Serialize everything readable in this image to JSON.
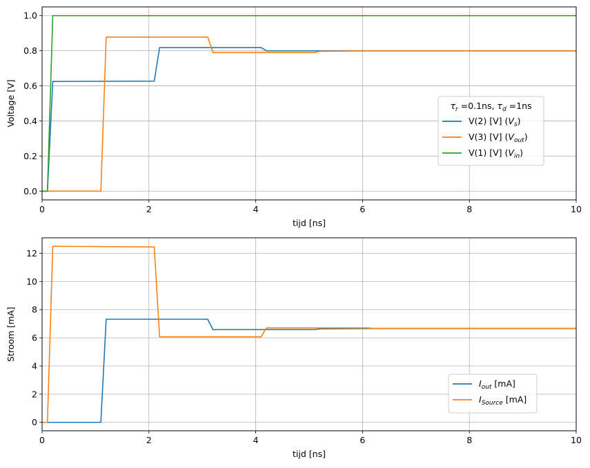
{
  "chart_data": [
    {
      "type": "line",
      "xlabel": "tijd [ns]",
      "ylabel": "Voltage [V]",
      "xlim": [
        0,
        10
      ],
      "ylim": [
        -0.05,
        1.05
      ],
      "xticks": [
        0,
        2,
        4,
        6,
        8,
        10
      ],
      "yticks": [
        0.0,
        0.2,
        0.4,
        0.6,
        0.8,
        1.0
      ],
      "xtick_labels": [
        "0",
        "2",
        "4",
        "6",
        "8",
        "10"
      ],
      "ytick_labels": [
        "0.0",
        "0.2",
        "0.4",
        "0.6",
        "0.8",
        "1.0"
      ],
      "grid": true,
      "legend": {
        "placement": "center-right",
        "title_parts": [
          {
            "text": "τ",
            "style": "italic"
          },
          {
            "text": "r",
            "style": "sub"
          },
          {
            "text": " =0.1ns, ",
            "style": "normal"
          },
          {
            "text": "τ",
            "style": "italic"
          },
          {
            "text": "d",
            "style": "sub"
          },
          {
            "text": " =1ns",
            "style": "normal"
          }
        ]
      },
      "series": [
        {
          "name_parts": [
            {
              "text": "V(2) [V]  (",
              "style": "normal"
            },
            {
              "text": "V",
              "style": "italic"
            },
            {
              "text": "s",
              "style": "sub"
            },
            {
              "text": ")",
              "style": "normal"
            }
          ],
          "color": "#1f77b4",
          "x": [
            0,
            0.1,
            0.2,
            2.1,
            2.2,
            4.1,
            4.2,
            10
          ],
          "y": [
            0,
            0,
            0.625,
            0.627,
            0.818,
            0.818,
            0.8,
            0.8
          ]
        },
        {
          "name_parts": [
            {
              "text": "V(3) [V]  (",
              "style": "normal"
            },
            {
              "text": "V",
              "style": "italic"
            },
            {
              "text": "out",
              "style": "sub"
            },
            {
              "text": ")",
              "style": "normal"
            }
          ],
          "color": "#ff7f0e",
          "x": [
            0,
            1.1,
            1.2,
            3.1,
            3.2,
            5.1,
            5.2,
            6.2,
            10
          ],
          "y": [
            0,
            0,
            0.878,
            0.878,
            0.79,
            0.79,
            0.797,
            0.799,
            0.799
          ]
        },
        {
          "name_parts": [
            {
              "text": "V(1) [V]  (",
              "style": "normal"
            },
            {
              "text": "V",
              "style": "italic"
            },
            {
              "text": "in",
              "style": "sub"
            },
            {
              "text": ")",
              "style": "normal"
            }
          ],
          "color": "#2ca02c",
          "x": [
            0,
            0.1,
            0.2,
            10
          ],
          "y": [
            0,
            0,
            1.0,
            1.0
          ]
        }
      ]
    },
    {
      "type": "line",
      "xlabel": "tijd [ns]",
      "ylabel": "Stroom [mA]",
      "xlim": [
        0,
        10
      ],
      "ylim": [
        -0.6,
        13.1
      ],
      "xticks": [
        0,
        2,
        4,
        6,
        8,
        10
      ],
      "yticks": [
        0,
        2,
        4,
        6,
        8,
        10,
        12
      ],
      "xtick_labels": [
        "0",
        "2",
        "4",
        "6",
        "8",
        "10"
      ],
      "ytick_labels": [
        "0",
        "2",
        "4",
        "6",
        "8",
        "10",
        "12"
      ],
      "grid": true,
      "legend": {
        "placement": "lower-right",
        "title_parts": []
      },
      "series": [
        {
          "name_parts": [
            {
              "text": "I",
              "style": "italic"
            },
            {
              "text": "out",
              "style": "sub"
            },
            {
              "text": "  [mA]",
              "style": "normal"
            }
          ],
          "color": "#1f77b4",
          "x": [
            0,
            1.1,
            1.2,
            3.1,
            3.2,
            5.1,
            5.2,
            6.2,
            10
          ],
          "y": [
            0,
            0,
            7.32,
            7.32,
            6.58,
            6.58,
            6.64,
            6.66,
            6.66
          ]
        },
        {
          "name_parts": [
            {
              "text": "I",
              "style": "italic"
            },
            {
              "text": "Source",
              "style": "sub"
            },
            {
              "text": " [mA]",
              "style": "normal"
            }
          ],
          "color": "#ff7f0e",
          "x": [
            0,
            0.1,
            0.2,
            2.1,
            2.2,
            4.1,
            4.2,
            6.1,
            6.2,
            10
          ],
          "y": [
            0,
            0,
            12.5,
            12.45,
            6.07,
            6.07,
            6.7,
            6.7,
            6.67,
            6.67
          ]
        }
      ]
    }
  ]
}
